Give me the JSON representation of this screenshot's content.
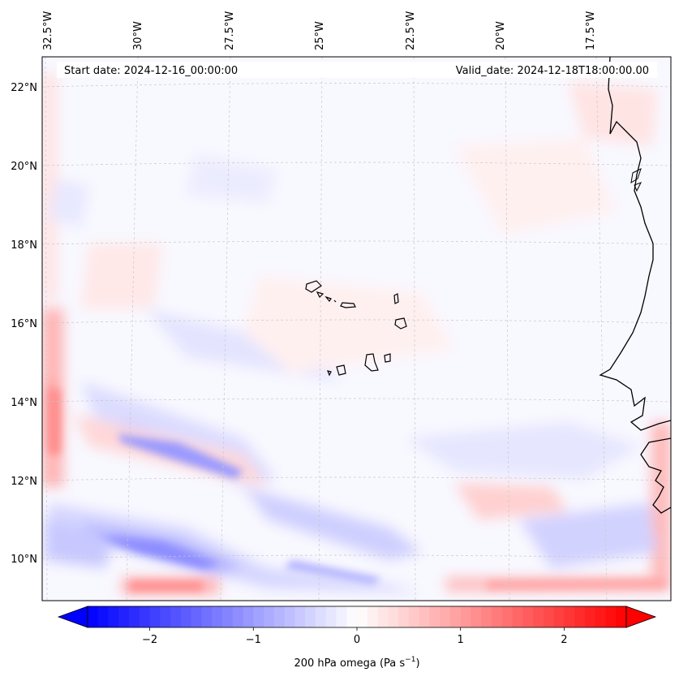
{
  "map": {
    "projection_hint": "lambert-like",
    "lon_range": [
      -33.0,
      -15.0
    ],
    "lat_range": [
      9.0,
      22.7
    ],
    "lon_ticks": [
      {
        "value": -32.5,
        "label": "32.5°W"
      },
      {
        "value": -30.0,
        "label": "30°W"
      },
      {
        "value": -27.5,
        "label": "27.5°W"
      },
      {
        "value": -25.0,
        "label": "25°W"
      },
      {
        "value": -22.5,
        "label": "22.5°W"
      },
      {
        "value": -20.0,
        "label": "20°W"
      },
      {
        "value": -17.5,
        "label": "17.5°W"
      }
    ],
    "lat_ticks": [
      {
        "value": 22,
        "label": "22°N"
      },
      {
        "value": 20,
        "label": "20°N"
      },
      {
        "value": 18,
        "label": "18°N"
      },
      {
        "value": 16,
        "label": "16°N"
      },
      {
        "value": 14,
        "label": "14°N"
      },
      {
        "value": 12,
        "label": "12°N"
      },
      {
        "value": 10,
        "label": "10°N"
      }
    ],
    "gridlines": true,
    "start_date_label": "Start date: 2024-12-16_00:00:00",
    "valid_date_label": "Valid_date: 2024-12-18T18:00:00.00"
  },
  "colorbar": {
    "label_text": "200 hPa omega (Pa s",
    "label_sup": "−1",
    "label_close": ")",
    "range": [
      -2.6,
      2.6
    ],
    "ticks": [
      {
        "value": -2,
        "label": "−2"
      },
      {
        "value": -1,
        "label": "−1"
      },
      {
        "value": 0,
        "label": "0"
      },
      {
        "value": 1,
        "label": "1"
      },
      {
        "value": 2,
        "label": "2"
      }
    ],
    "colormap": "bwr",
    "extend": "both",
    "colors": {
      "low": "#0000ff",
      "mid": "#ffffff",
      "high": "#ff0000"
    }
  }
}
